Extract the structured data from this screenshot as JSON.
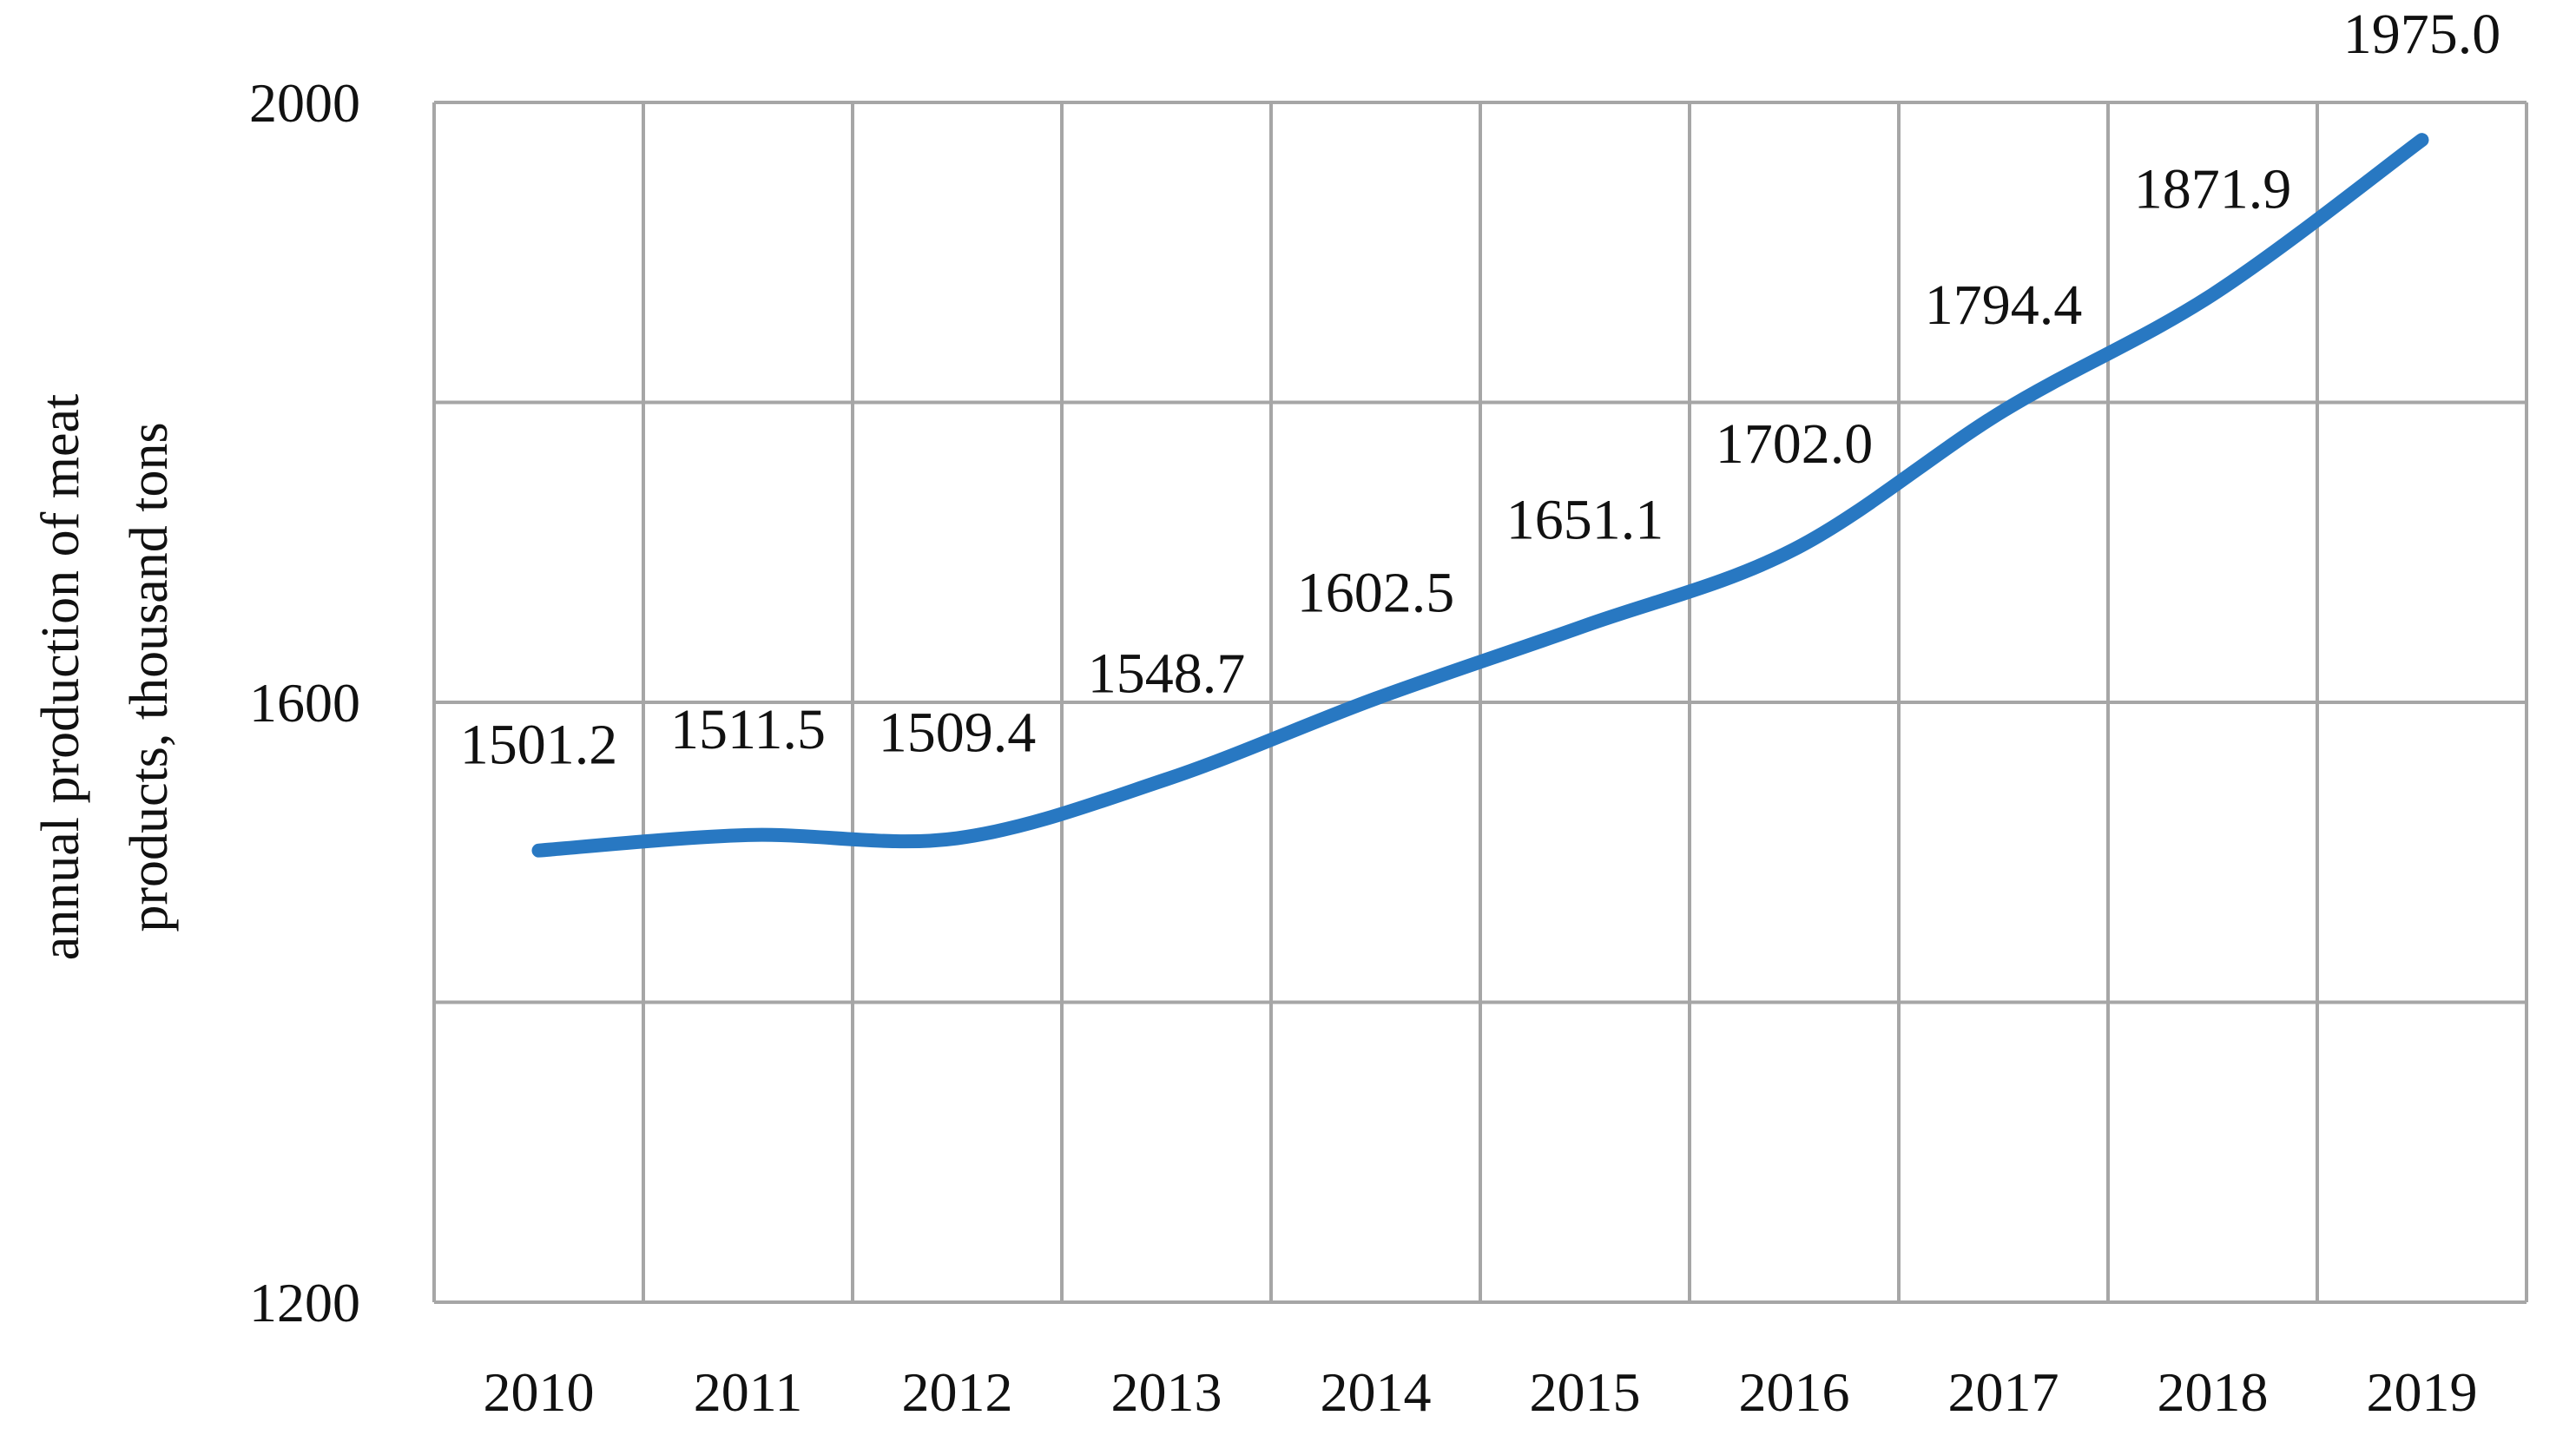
{
  "chart_data": {
    "type": "line",
    "title": "",
    "xlabel": "",
    "ylabel_lines": [
      "annual production of meat",
      "products, thousand tons"
    ],
    "categories": [
      "2010",
      "2011",
      "2012",
      "2013",
      "2014",
      "2015",
      "2016",
      "2017",
      "2018",
      "2019"
    ],
    "series": [
      {
        "values": [
          1501.2,
          1511.5,
          1509.4,
          1548.7,
          1602.5,
          1651.1,
          1702.0,
          1794.4,
          1871.9,
          1975.0
        ],
        "labels": [
          "1501.2",
          "1511.5",
          "1509.4",
          "1548.7",
          "1602.5",
          "1651.1",
          "1702.0",
          "1794.4",
          "1871.9",
          "1975.0"
        ],
        "color": "#2878C2"
      }
    ],
    "ylim": [
      1200,
      2000
    ],
    "y_tick_labels": [
      "1200",
      "1600",
      "2000"
    ],
    "horizontal_grid_values": [
      1200,
      1400,
      1600,
      1800,
      2000
    ],
    "grid": true,
    "grid_color": "#A6A6A6",
    "legend": "none",
    "smooth": true
  }
}
